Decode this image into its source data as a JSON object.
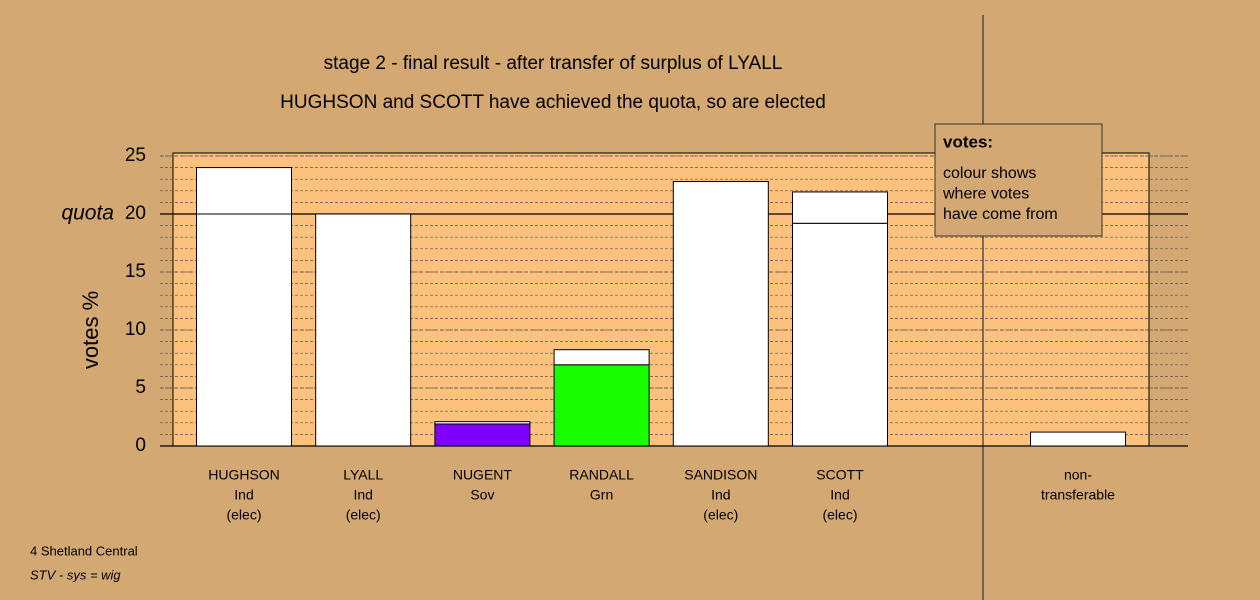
{
  "chart_data": {
    "type": "stacked-bar",
    "title": "stage 2 - final result - after transfer of surplus of LYALL",
    "subtitle": "HUGHSON and SCOTT have achieved the quota, so are elected",
    "ylabel": "votes %",
    "ylim": [
      0,
      25
    ],
    "yticks": [
      0,
      5,
      10,
      15,
      20,
      25
    ],
    "minor_grid_step": 1,
    "grid": true,
    "quota": {
      "label": "quota",
      "value": 20
    },
    "bars": [
      {
        "label": [
          "HUGHSON",
          "Ind",
          "(elec)"
        ],
        "segments": [
          {
            "value": 20,
            "color": "#ffffff"
          },
          {
            "value": 4.0,
            "color": "#ffffff"
          }
        ]
      },
      {
        "label": [
          "LYALL",
          "Ind",
          "(elec)"
        ],
        "segments": [
          {
            "value": 20,
            "color": "#ffffff"
          }
        ]
      },
      {
        "label": [
          "NUGENT",
          "Sov"
        ],
        "segments": [
          {
            "value": 1.9,
            "color": "#8000ff"
          },
          {
            "value": 0.2,
            "color": "#ffffff"
          }
        ]
      },
      {
        "label": [
          "RANDALL",
          "Grn"
        ],
        "segments": [
          {
            "value": 7.0,
            "color": "#1aff00"
          },
          {
            "value": 1.3,
            "color": "#ffffff"
          }
        ]
      },
      {
        "label": [
          "SANDISON",
          "Ind",
          "(elec)"
        ],
        "segments": [
          {
            "value": 22.8,
            "color": "#ffffff"
          }
        ]
      },
      {
        "label": [
          "SCOTT",
          "Ind",
          "(elec)"
        ],
        "segments": [
          {
            "value": 19.2,
            "color": "#ffffff"
          },
          {
            "value": 2.7,
            "color": "#ffffff"
          }
        ]
      }
    ],
    "nontransferable": {
      "label": [
        "non-",
        "transferable"
      ],
      "value": 1.2,
      "color": "#ffffff"
    },
    "note": {
      "title": "votes:",
      "lines": [
        "colour shows",
        "where votes",
        "have come from"
      ]
    },
    "footer": [
      "4 Shetland Central",
      "STV - sys = wig"
    ]
  }
}
